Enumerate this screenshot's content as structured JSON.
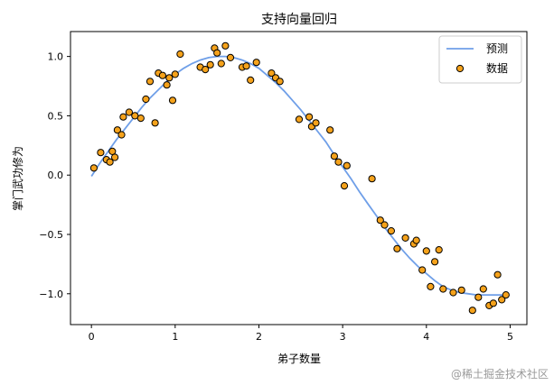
{
  "chart_data": {
    "type": "scatter",
    "title": "支持向量回归",
    "xlabel": "弟子数量",
    "ylabel": "掌门武功修为",
    "xlim": [
      -0.25,
      5.2
    ],
    "ylim": [
      -1.26,
      1.21
    ],
    "xticks": [
      0,
      1,
      2,
      3,
      4,
      5
    ],
    "xtick_labels": [
      "0",
      "1",
      "2",
      "3",
      "4",
      "5"
    ],
    "yticks": [
      -1.0,
      -0.5,
      0.0,
      0.5,
      1.0
    ],
    "ytick_labels": [
      "−1.0",
      "−0.5",
      "0.0",
      "0.5",
      "1.0"
    ],
    "grid": false,
    "legend_position": "top-right",
    "series": [
      {
        "name": "预测",
        "kind": "line",
        "color": "#6f9fe8",
        "x": [
          0.0,
          0.1,
          0.2,
          0.3,
          0.4,
          0.5,
          0.6,
          0.7,
          0.8,
          0.9,
          1.0,
          1.1,
          1.2,
          1.3,
          1.4,
          1.5,
          1.6,
          1.7,
          1.8,
          1.9,
          2.0,
          2.1,
          2.2,
          2.3,
          2.4,
          2.5,
          2.6,
          2.7,
          2.8,
          2.9,
          3.0,
          3.1,
          3.2,
          3.3,
          3.4,
          3.5,
          3.6,
          3.7,
          3.8,
          3.9,
          4.0,
          4.1,
          4.2,
          4.3,
          4.4,
          4.5,
          4.6,
          4.7,
          4.8,
          4.9,
          4.95
        ],
        "y": [
          -0.01,
          0.1,
          0.2,
          0.3,
          0.39,
          0.48,
          0.57,
          0.65,
          0.72,
          0.79,
          0.85,
          0.9,
          0.94,
          0.97,
          0.99,
          1.0,
          1.0,
          0.99,
          0.97,
          0.94,
          0.9,
          0.84,
          0.78,
          0.71,
          0.63,
          0.55,
          0.46,
          0.37,
          0.28,
          0.17,
          0.07,
          -0.03,
          -0.14,
          -0.24,
          -0.34,
          -0.44,
          -0.53,
          -0.62,
          -0.7,
          -0.77,
          -0.83,
          -0.89,
          -0.94,
          -0.97,
          -0.99,
          -1.0,
          -1.01,
          -1.01,
          -1.01,
          -1.01,
          -1.01
        ]
      },
      {
        "name": "数据",
        "kind": "scatter",
        "color": "#f5a21b",
        "edgecolor": "#000000",
        "x": [
          0.03,
          0.11,
          0.18,
          0.22,
          0.25,
          0.28,
          0.31,
          0.36,
          0.38,
          0.45,
          0.52,
          0.59,
          0.65,
          0.7,
          0.76,
          0.8,
          0.85,
          0.9,
          0.93,
          0.97,
          1.0,
          1.06,
          1.3,
          1.36,
          1.42,
          1.47,
          1.5,
          1.55,
          1.6,
          1.66,
          1.8,
          1.85,
          1.9,
          1.97,
          2.15,
          2.2,
          2.25,
          2.48,
          2.6,
          2.63,
          2.68,
          2.85,
          2.9,
          2.95,
          3.02,
          3.05,
          3.35,
          3.45,
          3.5,
          3.58,
          3.65,
          3.75,
          3.85,
          3.88,
          3.95,
          4.0,
          4.05,
          4.1,
          4.15,
          4.2,
          4.32,
          4.42,
          4.55,
          4.62,
          4.68,
          4.75,
          4.8,
          4.85,
          4.9,
          4.95
        ],
        "y": [
          0.06,
          0.19,
          0.13,
          0.11,
          0.2,
          0.15,
          0.38,
          0.34,
          0.49,
          0.53,
          0.5,
          0.48,
          0.64,
          0.79,
          0.44,
          0.86,
          0.84,
          0.76,
          0.82,
          0.63,
          0.85,
          1.02,
          0.91,
          0.89,
          0.93,
          1.07,
          1.03,
          0.94,
          1.09,
          0.99,
          0.91,
          0.92,
          0.8,
          0.95,
          0.86,
          0.82,
          0.79,
          0.47,
          0.49,
          0.41,
          0.44,
          0.38,
          0.16,
          0.11,
          -0.09,
          0.08,
          -0.03,
          -0.38,
          -0.42,
          -0.47,
          -0.62,
          -0.53,
          -0.58,
          -0.55,
          -0.8,
          -0.64,
          -0.94,
          -0.73,
          -0.63,
          -0.96,
          -0.99,
          -0.97,
          -1.14,
          -1.03,
          -0.96,
          -1.1,
          -1.08,
          -0.84,
          -1.05,
          -1.01
        ]
      }
    ]
  },
  "watermark": "@稀土掘金技术社区"
}
